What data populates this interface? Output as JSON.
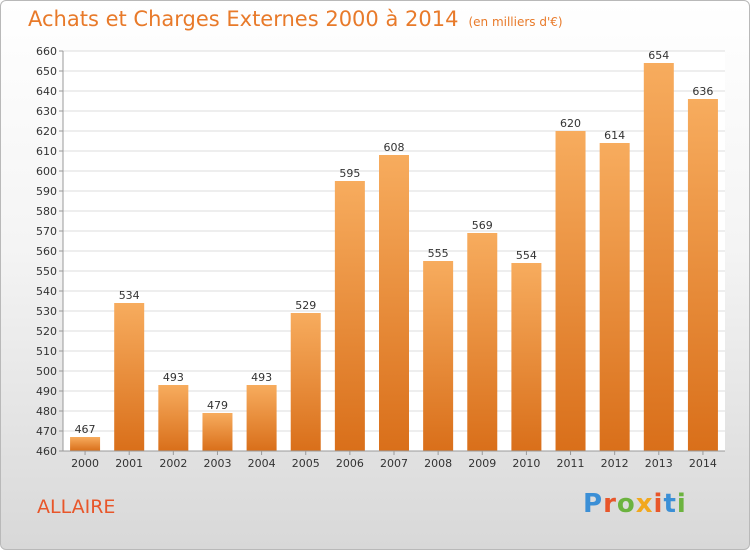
{
  "header": {
    "title": "Achats et Charges Externes 2000 à 2014",
    "unit": "(en milliers d'€)"
  },
  "footer": {
    "commune": "ALLAIRE",
    "logo_text": "Proxiti",
    "logo_colors": [
      "#3b8fd6",
      "#e8562a",
      "#6cb33f",
      "#f2a81e",
      "#e8562a",
      "#3b8fd6",
      "#6cb33f"
    ]
  },
  "colors": {
    "bar_light": "#f7ac5e",
    "bar_dark": "#d96f1a",
    "title": "#e87a2a",
    "grid": "#dddddd"
  },
  "chart_data": {
    "type": "bar",
    "title": "Achats et Charges Externes 2000 à 2014",
    "categories": [
      "2000",
      "2001",
      "2002",
      "2003",
      "2004",
      "2005",
      "2006",
      "2007",
      "2008",
      "2009",
      "2010",
      "2011",
      "2012",
      "2013",
      "2014"
    ],
    "values": [
      467,
      534,
      493,
      479,
      493,
      529,
      595,
      608,
      555,
      569,
      554,
      620,
      614,
      654,
      636
    ],
    "ylim": [
      460,
      660
    ],
    "ytick_step": 10,
    "grid": true,
    "data_labels": true
  }
}
